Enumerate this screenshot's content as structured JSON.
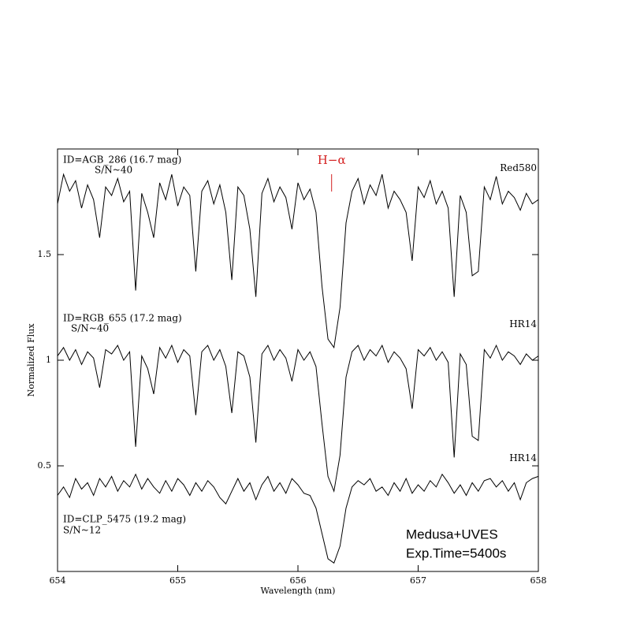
{
  "chart_data": {
    "type": "line",
    "x_label": "Wavelength (nm)",
    "y_label": "Normalized Flux",
    "xlim": [
      654,
      658
    ],
    "ylim": [
      0,
      2
    ],
    "xticks": [
      654,
      655,
      656,
      657,
      658
    ],
    "yticks": [
      0.5,
      1,
      1.5
    ],
    "halpha": {
      "label": "H−α",
      "x": 656.28,
      "color": "#d42020"
    },
    "annotations": [
      "ID=AGB_286 (16.7 mag)",
      "S/N~40",
      "ID=RGB_655 (17.2 mag)",
      "S/N~40",
      "ID=CLP_5475 (19.2 mag)",
      "S/N~12",
      "Medusa+UVES",
      "Exp.Time=5400s"
    ],
    "x": [
      654.0,
      654.05,
      654.1,
      654.15,
      654.2,
      654.25,
      654.3,
      654.35,
      654.4,
      654.45,
      654.5,
      654.55,
      654.6,
      654.65,
      654.7,
      654.75,
      654.8,
      654.85,
      654.9,
      654.95,
      655.0,
      655.05,
      655.1,
      655.15,
      655.2,
      655.25,
      655.3,
      655.35,
      655.4,
      655.45,
      655.5,
      655.55,
      655.6,
      655.65,
      655.7,
      655.75,
      655.8,
      655.85,
      655.9,
      655.95,
      656.0,
      656.05,
      656.1,
      656.15,
      656.2,
      656.25,
      656.3,
      656.35,
      656.4,
      656.45,
      656.5,
      656.55,
      656.6,
      656.65,
      656.7,
      656.75,
      656.8,
      656.85,
      656.9,
      656.95,
      657.0,
      657.05,
      657.1,
      657.15,
      657.2,
      657.25,
      657.3,
      657.35,
      657.4,
      657.45,
      657.5,
      657.55,
      657.6,
      657.65,
      657.7,
      657.75,
      657.8,
      657.85,
      657.9,
      657.95,
      658.0
    ],
    "series": [
      {
        "name": "Red580",
        "color": "#000000",
        "values": [
          1.74,
          1.88,
          1.8,
          1.85,
          1.72,
          1.83,
          1.76,
          1.58,
          1.82,
          1.78,
          1.86,
          1.75,
          1.8,
          1.33,
          1.79,
          1.7,
          1.58,
          1.84,
          1.76,
          1.88,
          1.73,
          1.82,
          1.78,
          1.42,
          1.8,
          1.85,
          1.74,
          1.83,
          1.7,
          1.38,
          1.82,
          1.78,
          1.62,
          1.3,
          1.79,
          1.86,
          1.75,
          1.82,
          1.77,
          1.62,
          1.84,
          1.76,
          1.81,
          1.7,
          1.35,
          1.1,
          1.06,
          1.25,
          1.65,
          1.8,
          1.86,
          1.74,
          1.83,
          1.78,
          1.88,
          1.72,
          1.8,
          1.76,
          1.7,
          1.47,
          1.82,
          1.77,
          1.85,
          1.74,
          1.8,
          1.72,
          1.3,
          1.78,
          1.7,
          1.4,
          1.42,
          1.82,
          1.76,
          1.87,
          1.74,
          1.8,
          1.77,
          1.71,
          1.79,
          1.74,
          1.76
        ]
      },
      {
        "name": "HR14",
        "color": "#000000",
        "values": [
          1.02,
          1.06,
          1.0,
          1.05,
          0.98,
          1.04,
          1.01,
          0.87,
          1.05,
          1.03,
          1.07,
          1.0,
          1.04,
          0.59,
          1.02,
          0.96,
          0.84,
          1.06,
          1.01,
          1.07,
          0.99,
          1.05,
          1.02,
          0.74,
          1.04,
          1.07,
          1.0,
          1.05,
          0.97,
          0.75,
          1.04,
          1.02,
          0.92,
          0.61,
          1.03,
          1.07,
          1.0,
          1.05,
          1.01,
          0.9,
          1.05,
          1.0,
          1.04,
          0.97,
          0.7,
          0.45,
          0.38,
          0.55,
          0.92,
          1.04,
          1.07,
          1.0,
          1.05,
          1.02,
          1.07,
          0.99,
          1.04,
          1.01,
          0.96,
          0.77,
          1.05,
          1.02,
          1.06,
          1.0,
          1.04,
          0.99,
          0.54,
          1.03,
          0.98,
          0.64,
          0.62,
          1.05,
          1.01,
          1.07,
          1.0,
          1.04,
          1.02,
          0.98,
          1.03,
          1.0,
          1.02
        ]
      },
      {
        "name": "HR14",
        "color": "#000000",
        "values": [
          0.36,
          0.4,
          0.35,
          0.44,
          0.39,
          0.42,
          0.36,
          0.44,
          0.4,
          0.45,
          0.38,
          0.43,
          0.4,
          0.46,
          0.39,
          0.44,
          0.4,
          0.37,
          0.43,
          0.38,
          0.44,
          0.41,
          0.36,
          0.42,
          0.38,
          0.43,
          0.4,
          0.35,
          0.32,
          0.38,
          0.44,
          0.38,
          0.42,
          0.34,
          0.41,
          0.45,
          0.38,
          0.42,
          0.37,
          0.44,
          0.41,
          0.37,
          0.36,
          0.3,
          0.18,
          0.06,
          0.04,
          0.12,
          0.3,
          0.4,
          0.43,
          0.41,
          0.44,
          0.38,
          0.4,
          0.36,
          0.42,
          0.38,
          0.44,
          0.37,
          0.41,
          0.38,
          0.43,
          0.4,
          0.46,
          0.42,
          0.37,
          0.41,
          0.36,
          0.42,
          0.38,
          0.43,
          0.44,
          0.4,
          0.43,
          0.38,
          0.42,
          0.34,
          0.42,
          0.44,
          0.45
        ]
      }
    ]
  }
}
